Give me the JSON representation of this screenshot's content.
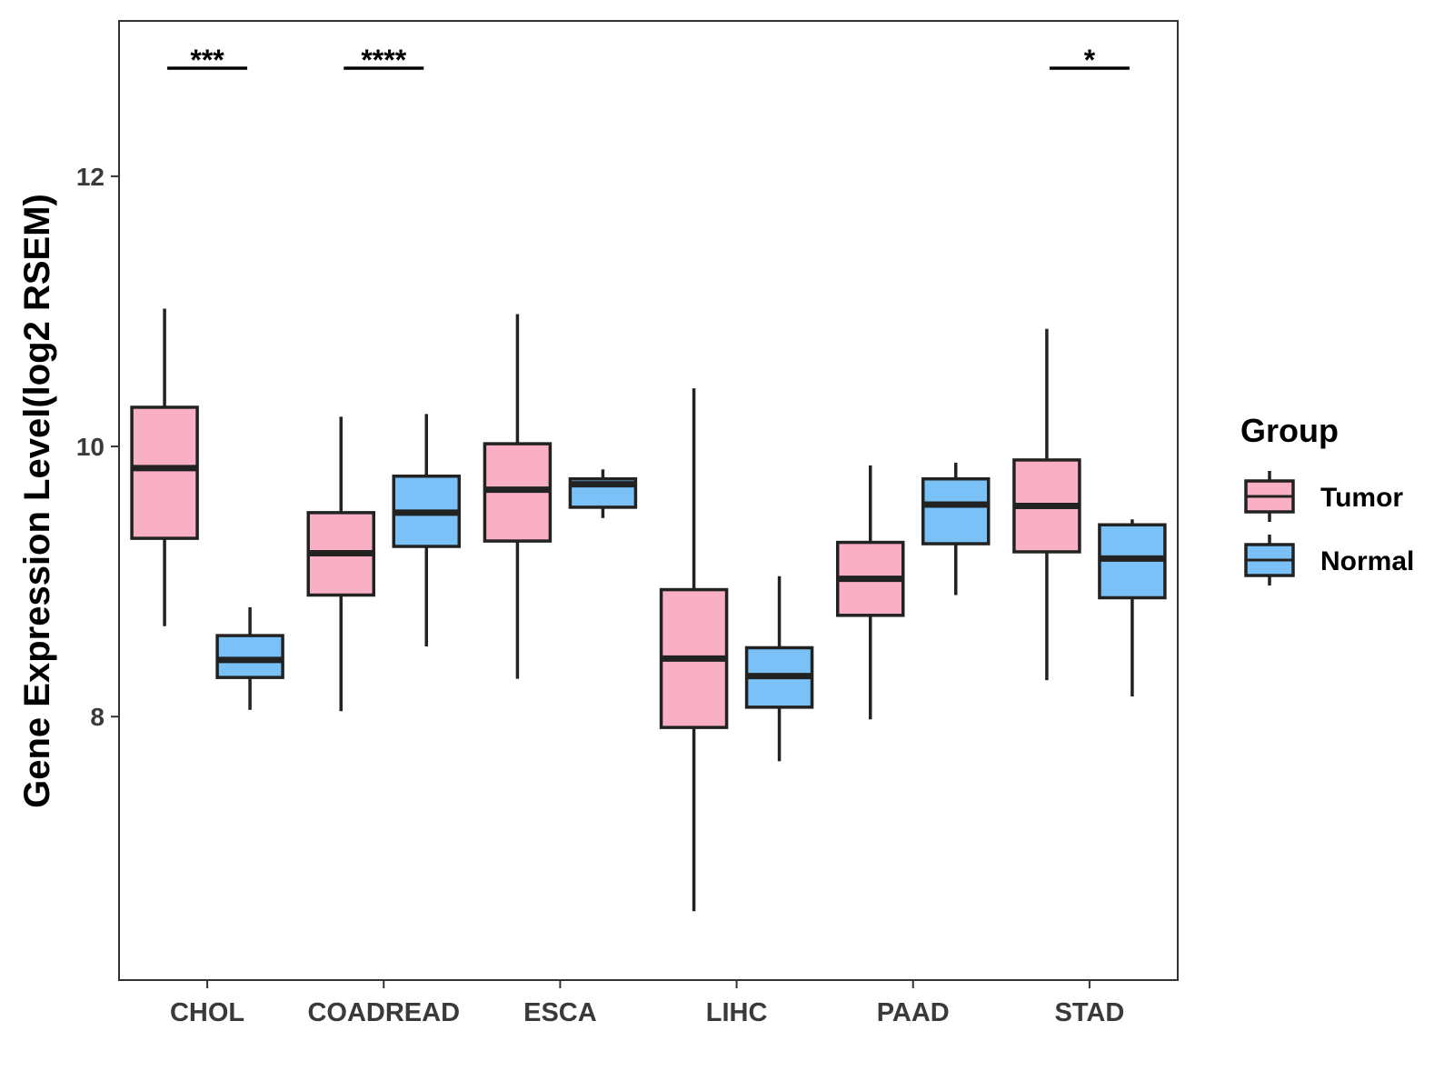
{
  "chart_data": {
    "type": "boxplot",
    "ylabel": "Gene Expression Level(log2 RSEM)",
    "xlabel": "",
    "ylim": [
      6.05,
      13.15
    ],
    "yticks": [
      8,
      10,
      12
    ],
    "categories": [
      "CHOL",
      "COADREAD",
      "ESCA",
      "LIHC",
      "PAAD",
      "STAD"
    ],
    "legend": {
      "title": "Group",
      "position": "right",
      "items": [
        {
          "name": "Tumor",
          "color": "#FAB0C4"
        },
        {
          "name": "Normal",
          "color": "#79C1F6"
        }
      ]
    },
    "series": [
      {
        "name": "Tumor",
        "color": "#FAB0C4",
        "boxes": [
          {
            "category": "CHOL",
            "min": 8.67,
            "q1": 9.32,
            "median": 9.84,
            "q3": 10.29,
            "max": 11.02
          },
          {
            "category": "COADREAD",
            "min": 8.04,
            "q1": 8.9,
            "median": 9.21,
            "q3": 9.51,
            "max": 10.22
          },
          {
            "category": "ESCA",
            "min": 8.28,
            "q1": 9.3,
            "median": 9.68,
            "q3": 10.02,
            "max": 10.98
          },
          {
            "category": "LIHC",
            "min": 6.56,
            "q1": 7.92,
            "median": 8.43,
            "q3": 8.94,
            "max": 10.43
          },
          {
            "category": "PAAD",
            "min": 7.98,
            "q1": 8.75,
            "median": 9.02,
            "q3": 9.29,
            "max": 9.86
          },
          {
            "category": "STAD",
            "min": 8.27,
            "q1": 9.22,
            "median": 9.56,
            "q3": 9.9,
            "max": 10.87
          }
        ]
      },
      {
        "name": "Normal",
        "color": "#79C1F6",
        "boxes": [
          {
            "category": "CHOL",
            "min": 8.05,
            "q1": 8.29,
            "median": 8.42,
            "q3": 8.6,
            "max": 8.81
          },
          {
            "category": "COADREAD",
            "min": 8.52,
            "q1": 9.26,
            "median": 9.51,
            "q3": 9.78,
            "max": 10.24
          },
          {
            "category": "ESCA",
            "min": 9.47,
            "q1": 9.55,
            "median": 9.72,
            "q3": 9.76,
            "max": 9.83
          },
          {
            "category": "LIHC",
            "min": 7.67,
            "q1": 8.07,
            "median": 8.3,
            "q3": 8.51,
            "max": 9.04
          },
          {
            "category": "PAAD",
            "min": 8.9,
            "q1": 9.28,
            "median": 9.57,
            "q3": 9.76,
            "max": 9.88
          },
          {
            "category": "STAD",
            "min": 8.15,
            "q1": 8.88,
            "median": 9.17,
            "q3": 9.42,
            "max": 9.46
          }
        ]
      }
    ],
    "significance": [
      {
        "category": "CHOL",
        "label": "***"
      },
      {
        "category": "COADREAD",
        "label": "****"
      },
      {
        "category": "ESCA",
        "label": ""
      },
      {
        "category": "LIHC",
        "label": ""
      },
      {
        "category": "PAAD",
        "label": ""
      },
      {
        "category": "STAD",
        "label": "*"
      }
    ],
    "grid": false
  }
}
